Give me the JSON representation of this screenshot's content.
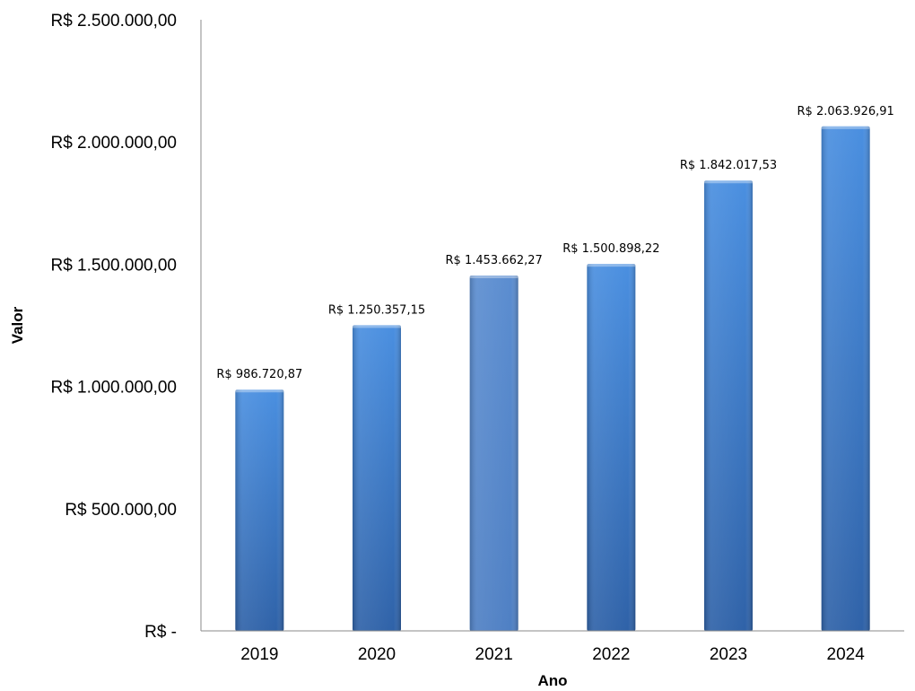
{
  "chart_data": {
    "type": "bar",
    "title": "",
    "xlabel": "Ano",
    "ylabel": "Valor",
    "categories": [
      "2019",
      "2020",
      "2021",
      "2022",
      "2023",
      "2024"
    ],
    "values": [
      986720.87,
      1250357.15,
      1453662.27,
      1500898.22,
      1842017.53,
      2063926.91
    ],
    "data_labels": [
      "R$ 986.720,87",
      "R$ 1.250.357,15",
      "R$ 1.453.662,27",
      "R$ 1.500.898,22",
      "R$ 1.842.017,53",
      "R$ 2.063.926,91"
    ],
    "ylim": [
      0,
      2500000
    ],
    "y_ticks": [
      0,
      500000,
      1000000,
      1500000,
      2000000,
      2500000
    ],
    "y_tick_labels": [
      "R$ -",
      "R$ 500.000,00",
      "R$ 1.000.000,00",
      "R$ 1.500.000,00",
      "R$ 2.000.000,00",
      "R$ 2.500.000,00"
    ],
    "grid": false,
    "legend": "none",
    "colors": {
      "bar_top": "#4a8fe0",
      "bar_bottom": "#2f62a8",
      "bar_highlight": "#5b8dd0",
      "axis": "#8a8a8a"
    }
  }
}
